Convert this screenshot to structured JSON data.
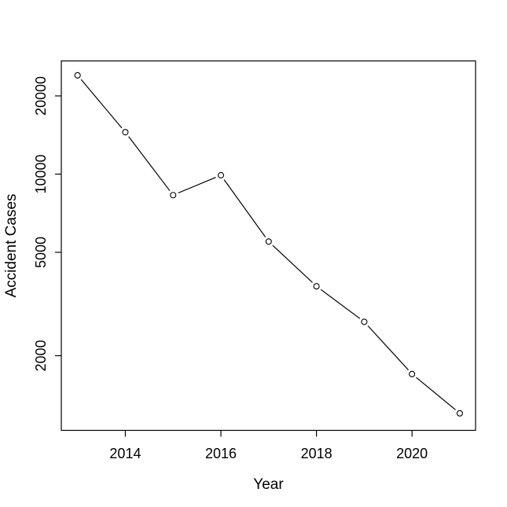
{
  "chart_data": {
    "type": "line",
    "title": "",
    "xlabel": "Year",
    "ylabel": "Accident Cases",
    "x": [
      2013,
      2014,
      2015,
      2016,
      2017,
      2018,
      2019,
      2020,
      2021
    ],
    "series": [
      {
        "name": "Accident Cases",
        "values": [
          24000,
          14500,
          8300,
          9900,
          5500,
          3700,
          2700,
          1700,
          1200
        ]
      }
    ],
    "x_ticks": [
      2014,
      2016,
      2018,
      2020
    ],
    "y_ticks": [
      2000,
      5000,
      10000,
      20000
    ],
    "y_scale": "log10",
    "xlim": [
      2012.66,
      2021.33
    ],
    "ylim_log10": [
      3.0136,
      4.4357
    ],
    "marker": "open-circle",
    "line_style": "points-and-line-with-gaps",
    "grid": false,
    "legend": false,
    "colors": {
      "line": "#000000",
      "marker_stroke": "#000000",
      "text": "#000000",
      "background": "#ffffff"
    }
  }
}
